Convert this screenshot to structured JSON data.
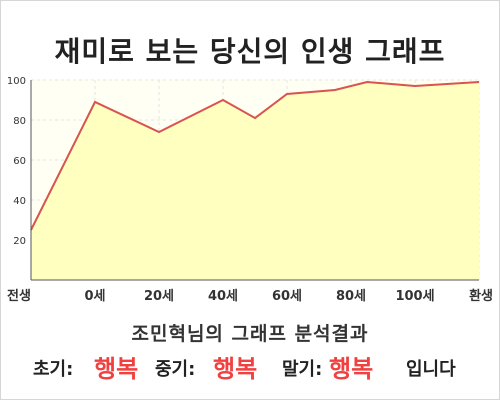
{
  "title": "재미로 보는 당신의 인생 그래프",
  "subtitle": "조민혁님의 그래프 분석결과",
  "summary": {
    "early_label": "초기:",
    "early_value": "행복",
    "mid_label": "중기:",
    "mid_value": "행복",
    "late_label": "말기:",
    "late_value": "행복",
    "suffix": "입니다"
  },
  "colors": {
    "line": "#d9534f",
    "fill": "#ffffc0",
    "highlight": "#f04040",
    "grid": "#e6e6e6"
  },
  "chart_data": {
    "type": "area",
    "x": [
      -20,
      0,
      20,
      40,
      50,
      60,
      75,
      85,
      100,
      120
    ],
    "values": [
      25,
      89,
      74,
      90,
      81,
      93,
      95,
      99,
      97,
      99
    ],
    "xlim": [
      -20,
      120
    ],
    "ylim": [
      0,
      100
    ],
    "x_ticks": [
      {
        "x": -20,
        "label": "전생"
      },
      {
        "x": 0,
        "label": "0세"
      },
      {
        "x": 20,
        "label": "20세"
      },
      {
        "x": 40,
        "label": "40세"
      },
      {
        "x": 60,
        "label": "60세"
      },
      {
        "x": 80,
        "label": "80세"
      },
      {
        "x": 100,
        "label": "100세"
      },
      {
        "x": 120,
        "label": "환생"
      }
    ],
    "y_ticks": [
      20,
      40,
      60,
      80,
      100
    ],
    "grid": true,
    "legend": "none"
  }
}
